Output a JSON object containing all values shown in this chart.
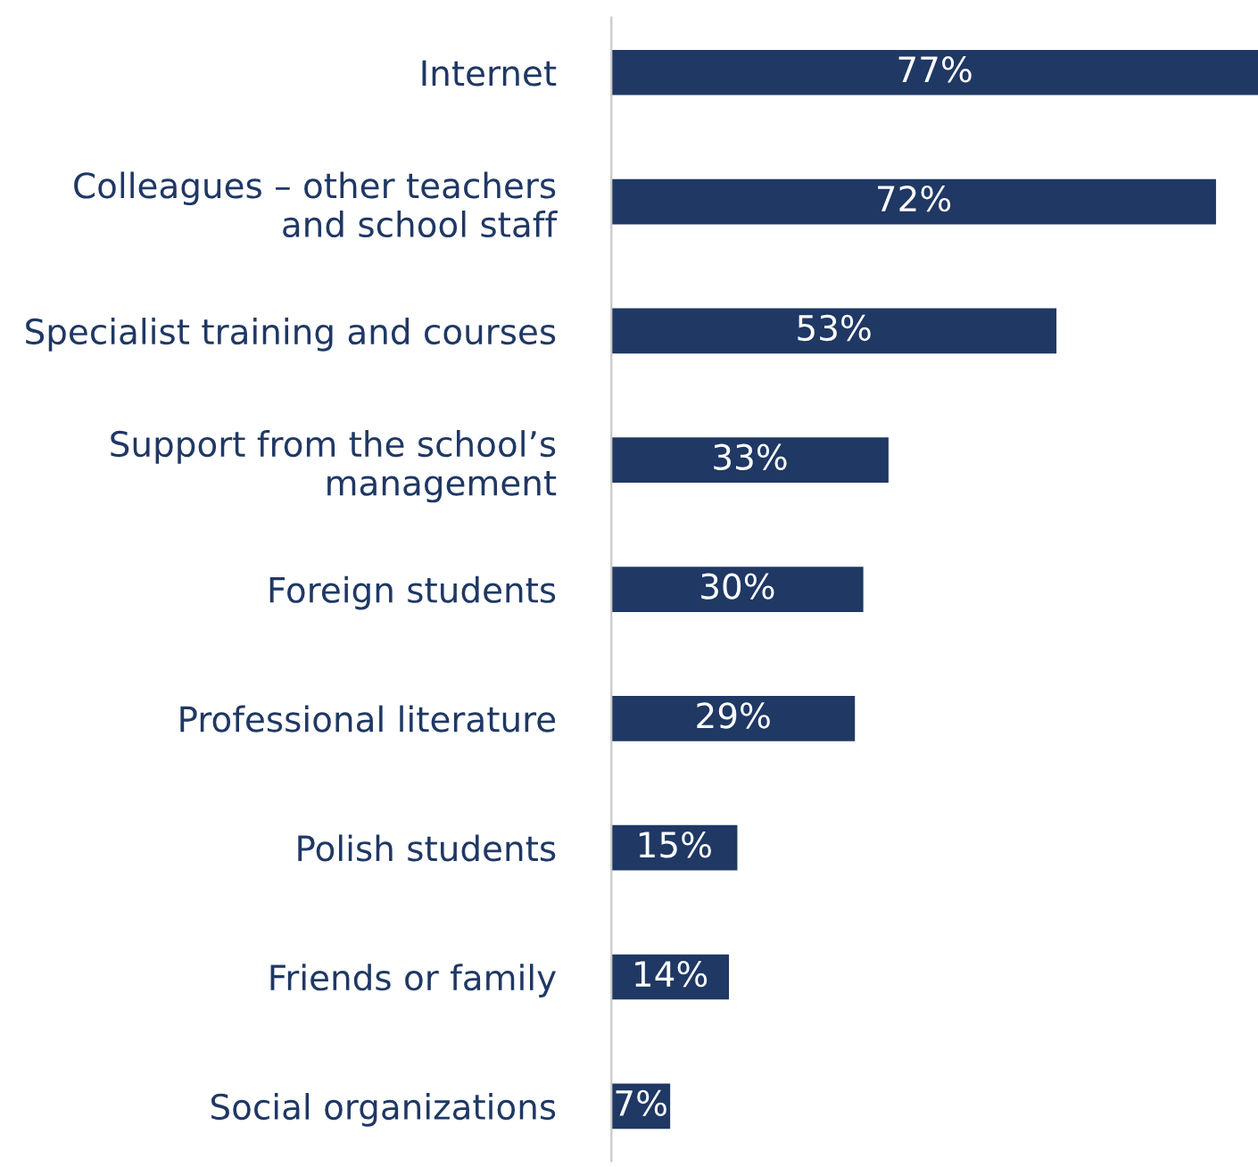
{
  "chart_data": {
    "type": "bar",
    "orientation": "horizontal",
    "value_labels": [
      "77%",
      "72%",
      "53%",
      "33%",
      "30%",
      "29%",
      "15%",
      "14%",
      "7%"
    ],
    "grid": false,
    "legend": false,
    "categories": [
      "Internet",
      "Colleagues – other teachers\nand school staff",
      "Specialist training and courses",
      "Support from the school’s\nmanagement",
      "Foreign students",
      "Professional literature",
      "Polish students",
      "Friends or family",
      "Social organizations"
    ],
    "values": [
      77,
      72,
      53,
      33,
      30,
      29,
      15,
      14,
      7
    ],
    "color": "#1f3864"
  }
}
